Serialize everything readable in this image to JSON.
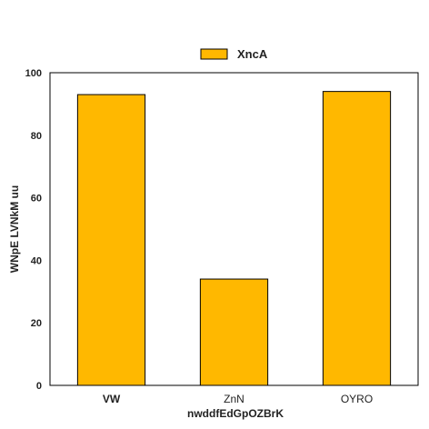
{
  "chart_data": {
    "type": "bar",
    "categories": [
      "VW",
      "ZnN",
      "OYRO"
    ],
    "category_label_bold": [
      true,
      false,
      false
    ],
    "series": [
      {
        "name": "XncA",
        "values": [
          93,
          34,
          94
        ],
        "color": "#FFB800"
      }
    ],
    "xlabel": "nwddfEdGpOZBrK",
    "ylabel": "WNpE LVNkM uu",
    "ylim": [
      0,
      100
    ],
    "yticks": [
      0,
      20,
      40,
      60,
      80,
      100
    ],
    "grid": false,
    "legend_position": "top-center"
  }
}
